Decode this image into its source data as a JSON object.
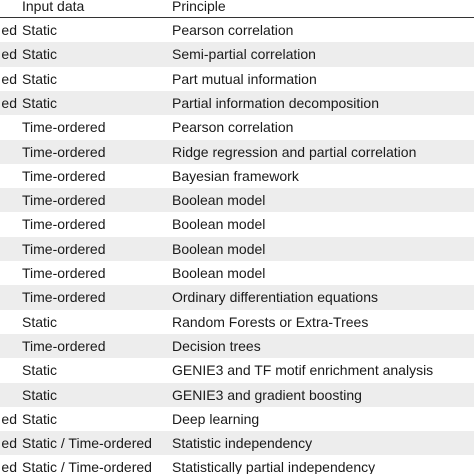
{
  "table": {
    "header": [
      "Input data",
      "Principle"
    ],
    "rows": [
      [
        "ed",
        "Static",
        "Pearson correlation"
      ],
      [
        "ed",
        "Static",
        "Semi-partial correlation"
      ],
      [
        "ed",
        "Static",
        "Part mutual information"
      ],
      [
        "ed",
        "Static",
        "Partial information decomposition"
      ],
      [
        null,
        "Time-ordered",
        "Pearson correlation"
      ],
      [
        null,
        "Time-ordered",
        "Ridge regression and partial correlation"
      ],
      [
        null,
        "Time-ordered",
        "Bayesian framework"
      ],
      [
        null,
        "Time-ordered",
        "Boolean model"
      ],
      [
        null,
        "Time-ordered",
        "Boolean model"
      ],
      [
        null,
        "Time-ordered",
        "Boolean model"
      ],
      [
        null,
        "Time-ordered",
        "Boolean model"
      ],
      [
        null,
        "Time-ordered",
        "Ordinary differentiation equations"
      ],
      [
        null,
        "Static",
        "Random Forests or Extra-Trees"
      ],
      [
        null,
        "Time-ordered",
        "Decision trees"
      ],
      [
        null,
        "Static",
        "GENIE3 and TF motif enrichment analysis"
      ],
      [
        null,
        "Static",
        "GENIE3 and gradient boosting"
      ],
      [
        "ed",
        "Static",
        "Deep learning"
      ],
      [
        "ed",
        "Static / Time-ordered",
        "Statistic independency"
      ],
      [
        "ed",
        "Static / Time-ordered",
        "Statistically partial independency"
      ]
    ]
  }
}
